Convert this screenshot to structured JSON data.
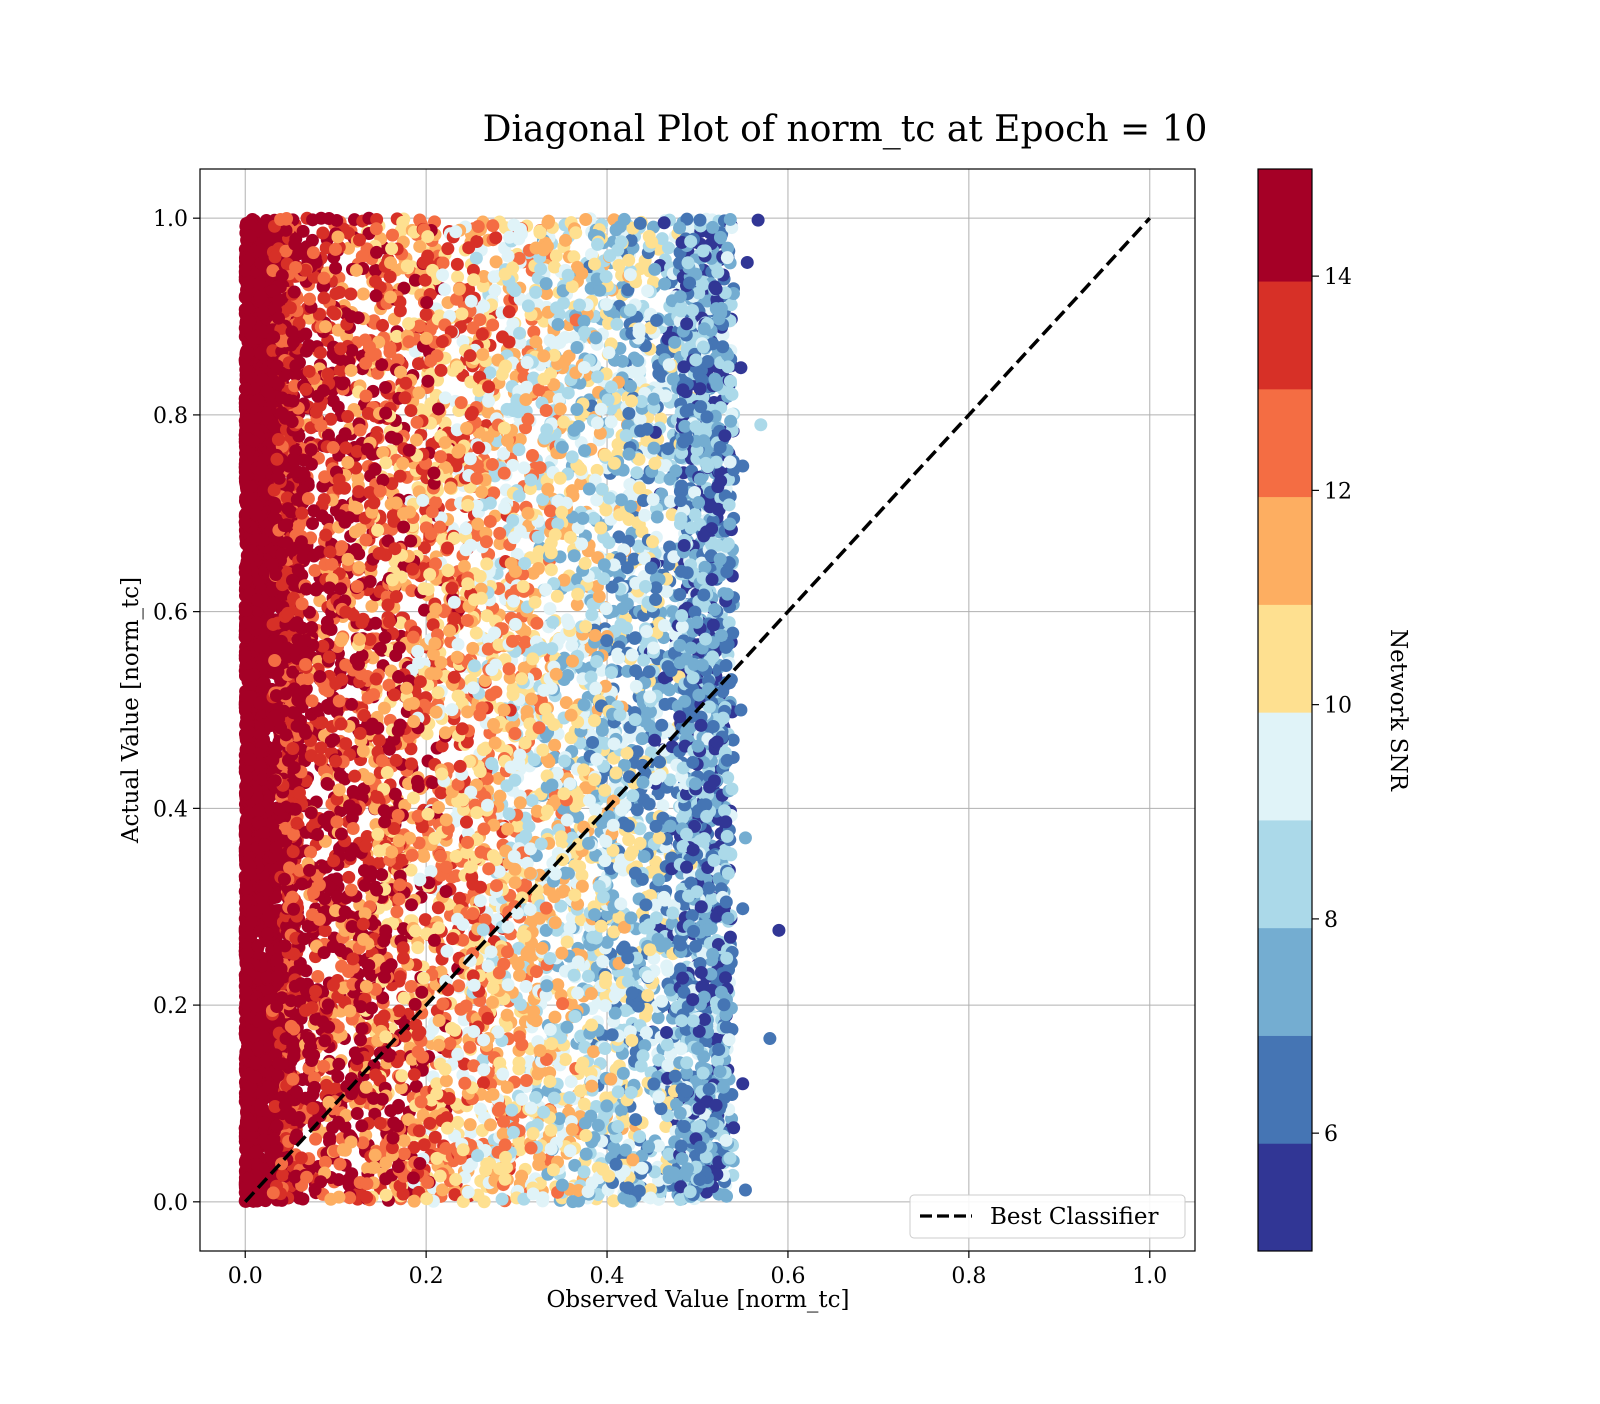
{
  "chart_data": {
    "type": "scatter",
    "title": "Diagonal Plot of norm_tc at Epoch = 10",
    "xlabel": "Observed Value [norm_tc]",
    "ylabel": "Actual Value [norm_tc]",
    "xlim": [
      -0.05,
      1.05
    ],
    "ylim": [
      -0.05,
      1.05
    ],
    "x_ticks": [
      0.0,
      0.2,
      0.4,
      0.6,
      0.8,
      1.0
    ],
    "y_ticks": [
      0.0,
      0.2,
      0.4,
      0.6,
      0.8,
      1.0
    ],
    "x_tick_labels": [
      "0.0",
      "0.2",
      "0.4",
      "0.6",
      "0.8",
      "1.0"
    ],
    "y_tick_labels": [
      "0.0",
      "0.2",
      "0.4",
      "0.6",
      "0.8",
      "1.0"
    ],
    "grid": true,
    "legend": {
      "position": "lower-right",
      "entries": [
        "Best Classifier"
      ]
    },
    "reference_line": {
      "name": "Best Classifier",
      "style": "dashed",
      "color": "#000000",
      "x": [
        0.0,
        1.0
      ],
      "y": [
        0.0,
        1.0
      ]
    },
    "colorbar": {
      "label": "Network SNR",
      "range": [
        4.9,
        15.0
      ],
      "bins": [
        4.9,
        5.906,
        6.912,
        7.918,
        8.924,
        9.93,
        10.936,
        11.942,
        12.948,
        13.954,
        14.96
      ],
      "colors": [
        "#313695",
        "#4575b4",
        "#74add1",
        "#abd9e9",
        "#e0f3f8",
        "#fee090",
        "#fdae61",
        "#f46d43",
        "#d73027",
        "#a50026"
      ],
      "ticks": [
        6,
        8,
        10,
        12,
        14
      ],
      "tick_labels": [
        "6",
        "8",
        "10",
        "12",
        "14"
      ]
    },
    "scatter_summary": {
      "x_range": [
        0.0,
        0.59
      ],
      "y_range": [
        0.0,
        1.0
      ],
      "note_points": [
        {
          "x": 0.567,
          "y": 0.998,
          "snr": 5.2
        },
        {
          "x": 0.57,
          "y": 0.79,
          "snr": 8.4
        },
        {
          "x": 0.59,
          "y": 0.276,
          "snr": 5.1
        },
        {
          "x": 0.58,
          "y": 0.166,
          "snr": 6.6
        },
        {
          "x": 0.555,
          "y": 0.955,
          "snr": 5.3
        },
        {
          "x": 0.548,
          "y": 0.848,
          "snr": 5.2
        },
        {
          "x": 0.55,
          "y": 0.748,
          "snr": 6.0
        },
        {
          "x": 0.548,
          "y": 0.5,
          "snr": 6.1
        },
        {
          "x": 0.553,
          "y": 0.37,
          "snr": 7.8
        },
        {
          "x": 0.55,
          "y": 0.298,
          "snr": 6.3
        },
        {
          "x": 0.55,
          "y": 0.12,
          "snr": 5.4
        },
        {
          "x": 0.553,
          "y": 0.012,
          "snr": 6.2
        }
      ]
    }
  }
}
